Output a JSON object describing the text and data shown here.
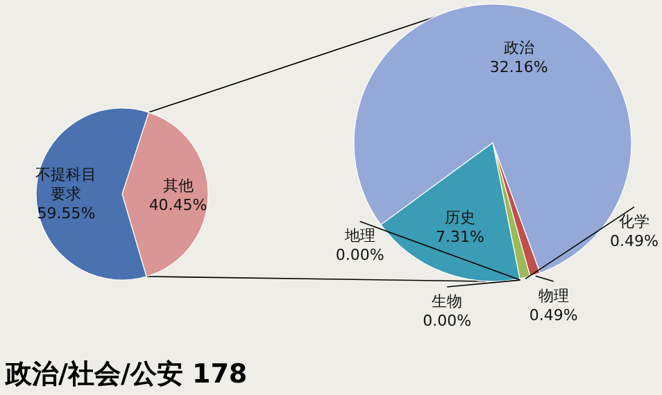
{
  "chart_data": [
    {
      "type": "pie",
      "title": "政治/社会/公安  178",
      "categories": [
        "其他",
        "不提科目要求"
      ],
      "values": [
        40.45,
        59.55
      ],
      "value_labels": [
        "40.45%",
        "59.55%"
      ],
      "colors": [
        "#d99694",
        "#4a72b0"
      ]
    },
    {
      "type": "pie",
      "categories": [
        "物理",
        "化学",
        "生物",
        "地理",
        "历史",
        "政治"
      ],
      "values": [
        0.49,
        0.49,
        0.0,
        0.0,
        7.31,
        32.16
      ],
      "value_labels": [
        "0.49%",
        "0.49%",
        "0.00%",
        "0.00%",
        "7.31%",
        "32.16%"
      ],
      "colors": [
        "#c0504d",
        "#9bbb59",
        "#8064a2",
        "#f79646",
        "#3a9db5",
        "#95a9d8"
      ]
    }
  ]
}
